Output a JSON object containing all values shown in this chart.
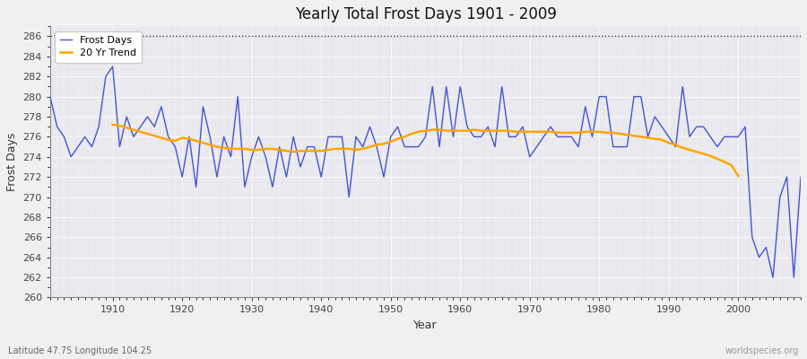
{
  "title": "Yearly Total Frost Days 1901 - 2009",
  "xlabel": "Year",
  "ylabel": "Frost Days",
  "subtitle": "Latitude 47.75 Longitude 104.25",
  "watermark": "worldspecies.org",
  "plot_bg_color": "#e8e8ee",
  "fig_bg_color": "#f0f0f0",
  "line_color": "#4455cc",
  "trend_color": "#ffa500",
  "ylim": [
    260,
    287
  ],
  "xlim": [
    1901,
    2009
  ],
  "yticks": [
    260,
    262,
    264,
    266,
    268,
    270,
    272,
    274,
    276,
    278,
    280,
    282,
    284,
    286
  ],
  "xticks": [
    1910,
    1920,
    1930,
    1940,
    1950,
    1960,
    1970,
    1980,
    1990,
    2000
  ],
  "hline_y": 286,
  "years": [
    1901,
    1902,
    1903,
    1904,
    1905,
    1906,
    1907,
    1908,
    1909,
    1910,
    1911,
    1912,
    1913,
    1914,
    1915,
    1916,
    1917,
    1918,
    1919,
    1920,
    1921,
    1922,
    1923,
    1924,
    1925,
    1926,
    1927,
    1928,
    1929,
    1930,
    1931,
    1932,
    1933,
    1934,
    1935,
    1936,
    1937,
    1938,
    1939,
    1940,
    1941,
    1942,
    1943,
    1944,
    1945,
    1946,
    1947,
    1948,
    1949,
    1950,
    1951,
    1952,
    1953,
    1954,
    1955,
    1956,
    1957,
    1958,
    1959,
    1960,
    1961,
    1962,
    1963,
    1964,
    1965,
    1966,
    1967,
    1968,
    1969,
    1970,
    1971,
    1972,
    1973,
    1974,
    1975,
    1976,
    1977,
    1978,
    1979,
    1980,
    1981,
    1982,
    1983,
    1984,
    1985,
    1986,
    1987,
    1988,
    1989,
    1990,
    1991,
    1992,
    1993,
    1994,
    1995,
    1996,
    1997,
    1998,
    1999,
    2000,
    2001,
    2002,
    2003,
    2004,
    2005,
    2006,
    2007,
    2008,
    2009
  ],
  "frost_days": [
    280,
    277,
    276,
    274,
    275,
    276,
    275,
    277,
    282,
    283,
    275,
    278,
    276,
    277,
    278,
    277,
    279,
    276,
    275,
    272,
    276,
    271,
    279,
    276,
    272,
    276,
    274,
    280,
    271,
    274,
    276,
    274,
    271,
    275,
    272,
    276,
    273,
    275,
    275,
    272,
    276,
    276,
    276,
    270,
    276,
    275,
    277,
    275,
    272,
    276,
    277,
    275,
    275,
    275,
    276,
    281,
    275,
    281,
    276,
    281,
    277,
    276,
    276,
    277,
    275,
    281,
    276,
    276,
    277,
    274,
    275,
    276,
    277,
    276,
    276,
    276,
    275,
    279,
    276,
    280,
    280,
    275,
    275,
    275,
    280,
    280,
    276,
    278,
    277,
    276,
    275,
    281,
    276,
    277,
    277,
    276,
    275,
    276,
    276,
    276,
    277,
    266,
    264,
    265,
    262,
    270,
    272,
    262,
    272
  ],
  "trend_years": [
    1910,
    1911,
    1912,
    1913,
    1914,
    1915,
    1916,
    1917,
    1918,
    1919,
    1920,
    1921,
    1922,
    1923,
    1924,
    1925,
    1926,
    1927,
    1928,
    1929,
    1930,
    1931,
    1932,
    1933,
    1934,
    1935,
    1936,
    1937,
    1938,
    1939,
    1940,
    1941,
    1942,
    1943,
    1944,
    1945,
    1946,
    1947,
    1948,
    1949,
    1950,
    1951,
    1952,
    1953,
    1954,
    1955,
    1956,
    1957,
    1958,
    1959,
    1960,
    1961,
    1962,
    1963,
    1964,
    1965,
    1966,
    1967,
    1968,
    1969,
    1970,
    1971,
    1972,
    1973,
    1974,
    1975,
    1976,
    1977,
    1978,
    1979,
    1980,
    1981,
    1982,
    1983,
    1984,
    1985,
    1986,
    1987,
    1988,
    1989,
    1990,
    1991,
    1992,
    1993,
    1994,
    1995,
    1996,
    1997,
    1998,
    1999,
    2000
  ],
  "trend_values": [
    277.2,
    277.1,
    276.9,
    276.7,
    276.5,
    276.3,
    276.1,
    275.9,
    275.7,
    275.6,
    275.9,
    275.8,
    275.6,
    275.4,
    275.2,
    275.0,
    274.9,
    274.8,
    274.8,
    274.8,
    274.7,
    274.7,
    274.8,
    274.8,
    274.7,
    274.6,
    274.5,
    274.6,
    274.6,
    274.6,
    274.6,
    274.7,
    274.8,
    274.8,
    274.8,
    274.7,
    274.8,
    275.0,
    275.2,
    275.3,
    275.5,
    275.8,
    276.0,
    276.3,
    276.5,
    276.6,
    276.7,
    276.7,
    276.6,
    276.6,
    276.6,
    276.6,
    276.7,
    276.6,
    276.6,
    276.6,
    276.6,
    276.6,
    276.5,
    276.5,
    276.5,
    276.5,
    276.5,
    276.5,
    276.4,
    276.4,
    276.4,
    276.4,
    276.5,
    276.5,
    276.5,
    276.4,
    276.4,
    276.3,
    276.2,
    276.1,
    276.0,
    275.9,
    275.8,
    275.7,
    275.4,
    275.2,
    274.9,
    274.7,
    274.5,
    274.3,
    274.1,
    273.8,
    273.5,
    273.2,
    272.1
  ]
}
